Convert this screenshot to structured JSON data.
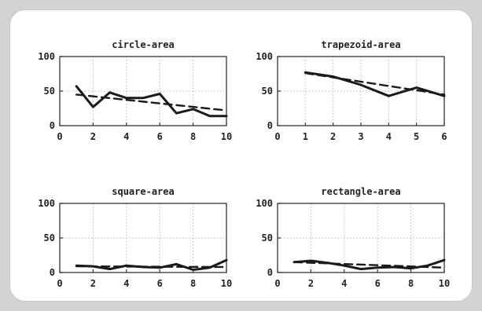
{
  "chart_data": [
    {
      "type": "line",
      "title": "circle-area",
      "xlim": [
        0,
        10
      ],
      "ylim": [
        0,
        100
      ],
      "xticks": [
        0,
        2,
        4,
        6,
        8,
        10
      ],
      "yticks": [
        0,
        50,
        100
      ],
      "grid": true,
      "series": [
        {
          "style": "solid",
          "x": [
            1,
            2,
            3,
            4,
            5,
            6,
            7,
            8,
            9,
            10
          ],
          "values": [
            57,
            27,
            48,
            40,
            40,
            46,
            18,
            24,
            14,
            14
          ]
        },
        {
          "style": "dashed",
          "x": [
            1,
            10
          ],
          "values": [
            45,
            22
          ]
        }
      ]
    },
    {
      "type": "line",
      "title": "trapezoid-area",
      "xlim": [
        0,
        6
      ],
      "ylim": [
        0,
        100
      ],
      "xticks": [
        0,
        1,
        2,
        3,
        4,
        5,
        6
      ],
      "yticks": [
        0,
        50,
        100
      ],
      "grid": true,
      "series": [
        {
          "style": "solid",
          "x": [
            1,
            2,
            3,
            4,
            5,
            6
          ],
          "values": [
            77,
            71,
            59,
            43,
            55,
            43
          ]
        },
        {
          "style": "dashed",
          "x": [
            1,
            6
          ],
          "values": [
            76,
            45
          ]
        }
      ]
    },
    {
      "type": "line",
      "title": "square-area",
      "xlim": [
        0,
        10
      ],
      "ylim": [
        0,
        100
      ],
      "xticks": [
        0,
        2,
        4,
        6,
        8,
        10
      ],
      "yticks": [
        0,
        50,
        100
      ],
      "grid": true,
      "series": [
        {
          "style": "solid",
          "x": [
            1,
            2,
            3,
            4,
            5,
            6,
            7,
            8,
            9,
            10
          ],
          "values": [
            10,
            9,
            5,
            10,
            8,
            7,
            12,
            4,
            7,
            18
          ]
        },
        {
          "style": "dashed",
          "x": [
            1,
            10
          ],
          "values": [
            9,
            8
          ]
        }
      ]
    },
    {
      "type": "line",
      "title": "rectangle-area",
      "xlim": [
        0,
        10
      ],
      "ylim": [
        0,
        100
      ],
      "xticks": [
        0,
        2,
        4,
        6,
        8,
        10
      ],
      "yticks": [
        0,
        50,
        100
      ],
      "grid": true,
      "series": [
        {
          "style": "solid",
          "x": [
            1,
            2,
            3,
            4,
            5,
            6,
            7,
            8,
            9,
            10
          ],
          "values": [
            15,
            17,
            14,
            10,
            5,
            7,
            8,
            6,
            10,
            18
          ]
        },
        {
          "style": "dashed",
          "x": [
            1,
            10
          ],
          "values": [
            15,
            7
          ]
        }
      ]
    }
  ]
}
